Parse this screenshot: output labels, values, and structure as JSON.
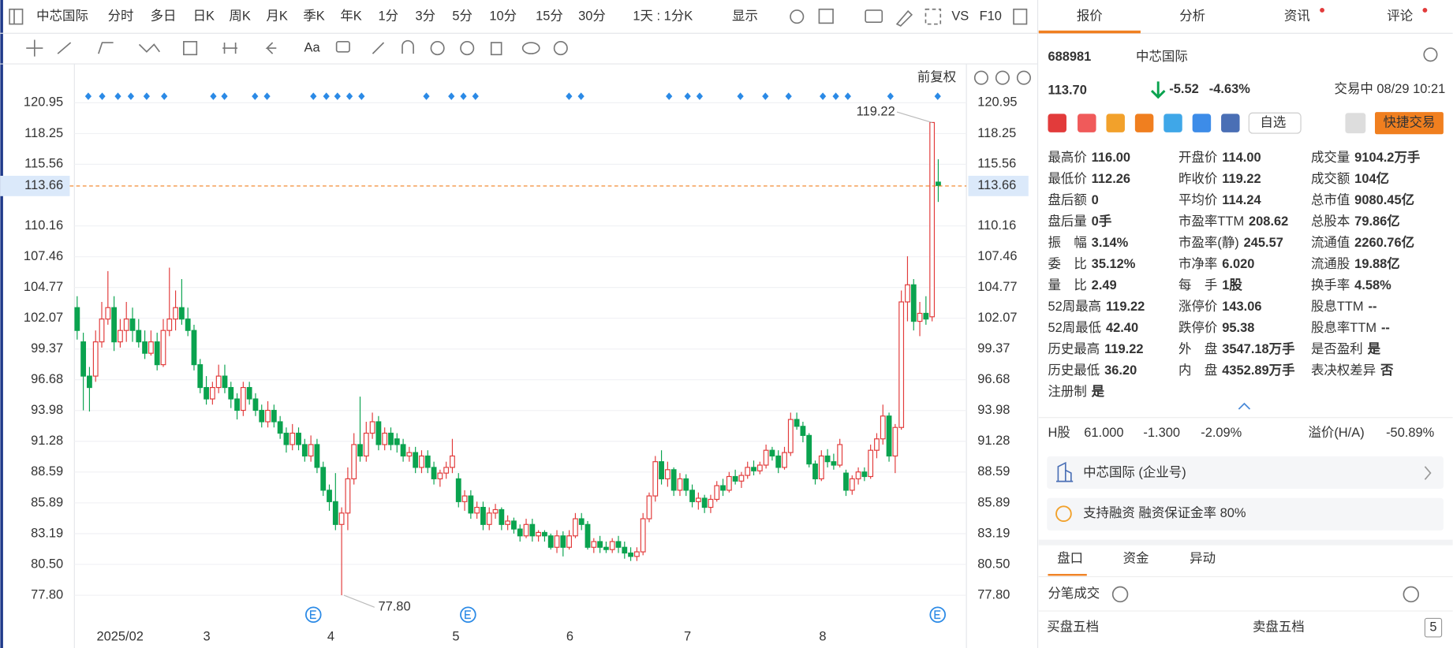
{
  "toolbar": {
    "stock": "中芯国际",
    "periods": [
      "分时",
      "多日",
      "日K",
      "周K",
      "月K",
      "季K",
      "年K",
      "1分",
      "3分",
      "5分",
      "10分",
      "15分",
      "30分",
      "1天 : 1分K",
      "显示"
    ],
    "extras": [
      "VS",
      "F10"
    ],
    "font_tool": "Aa"
  },
  "chart_data": {
    "type": "candlestick",
    "adjust_label": "前复权",
    "up_color": "#e23b3b",
    "down_color": "#0aa34f",
    "ylim": [
      76.42,
      122.33
    ],
    "yticks": [
      120.95,
      118.25,
      115.56,
      110.16,
      107.46,
      104.77,
      102.07,
      99.37,
      96.68,
      93.98,
      91.28,
      88.59,
      85.89,
      83.19,
      {
        "value": 80.5,
        "label": "80.50"
      },
      {
        "value": 77.8,
        "label": "77.80"
      }
    ],
    "grid": true,
    "crosshair": 113.66,
    "high_mark": 119.22,
    "low_mark": {
      "value": 77.8,
      "label": "77.80"
    },
    "months": [
      "2025/02",
      "3",
      "4",
      "5",
      "6",
      "7",
      "8"
    ],
    "candles": [
      [
        103,
        104,
        100.2,
        101
      ],
      [
        100,
        100.8,
        94,
        97
      ],
      [
        97,
        97.8,
        93.9,
        96
      ],
      [
        97,
        101,
        96.5,
        100
      ],
      [
        100,
        103.5,
        99.5,
        102
      ],
      [
        102,
        106.2,
        101.5,
        103
      ],
      [
        103,
        104,
        99.2,
        100
      ],
      [
        100,
        102,
        99.5,
        101
      ],
      [
        101,
        103.5,
        100,
        102
      ],
      [
        102,
        103,
        100,
        101
      ],
      [
        101,
        102,
        99.5,
        100
      ],
      [
        100,
        101,
        98.5,
        99
      ],
      [
        99,
        101,
        98.8,
        100
      ],
      [
        100,
        100.8,
        97.5,
        98
      ],
      [
        98,
        102,
        97.8,
        101
      ],
      [
        101,
        106.5,
        100.5,
        102
      ],
      [
        102,
        104.5,
        101,
        103
      ],
      [
        103,
        105.5,
        101.5,
        102
      ],
      [
        102,
        103,
        100.5,
        101
      ],
      [
        101,
        101.5,
        97.5,
        98
      ],
      [
        98,
        98.5,
        95.5,
        96
      ],
      [
        96,
        97,
        94.5,
        95
      ],
      [
        95,
        96.5,
        94.5,
        96
      ],
      [
        96,
        98,
        95.5,
        97
      ],
      [
        97,
        98,
        95.5,
        96
      ],
      [
        96,
        96.5,
        94.2,
        95
      ],
      [
        95,
        95.5,
        93.2,
        94
      ],
      [
        94,
        96.5,
        93.5,
        96
      ],
      [
        96,
        96.5,
        94.5,
        95
      ],
      [
        95,
        95.5,
        93.5,
        94
      ],
      [
        94,
        94.5,
        92.5,
        93
      ],
      [
        93,
        94.8,
        92.5,
        94
      ],
      [
        94,
        94.5,
        92.5,
        93
      ],
      [
        93,
        93.5,
        91.5,
        92
      ],
      [
        92,
        92.5,
        90.3,
        91
      ],
      [
        91,
        92.8,
        90.5,
        92
      ],
      [
        92,
        92.5,
        90.5,
        91
      ],
      [
        91,
        91.5,
        89.5,
        90
      ],
      [
        90,
        91.8,
        89.5,
        91
      ],
      [
        91,
        91.5,
        88.5,
        89
      ],
      [
        89,
        89.5,
        86.5,
        87
      ],
      [
        87,
        87.5,
        85.2,
        86
      ],
      [
        86,
        88.5,
        83.5,
        84
      ],
      [
        84,
        85.5,
        77.8,
        85
      ],
      [
        85,
        89,
        83.5,
        88
      ],
      [
        88,
        92,
        87.5,
        91
      ],
      [
        91,
        95.2,
        89.5,
        90
      ],
      [
        90,
        93,
        89.5,
        92
      ],
      [
        92,
        93.8,
        91.5,
        93
      ],
      [
        93,
        93.5,
        90.5,
        91
      ],
      [
        91,
        92.5,
        90.5,
        92
      ],
      [
        92,
        92.5,
        90.5,
        91
      ],
      [
        91.5,
        92,
        90.3,
        91
      ],
      [
        91,
        91.5,
        89.5,
        90
      ],
      [
        90,
        90.8,
        89.5,
        90.3
      ],
      [
        90.3,
        90.8,
        88.5,
        89
      ],
      [
        89,
        90.5,
        88.5,
        90
      ],
      [
        90,
        90.5,
        88.5,
        89
      ],
      [
        89,
        89.5,
        87.5,
        88
      ],
      [
        88,
        88.8,
        87.3,
        88.5
      ],
      [
        88.5,
        89.5,
        88,
        89
      ],
      [
        89,
        91.5,
        88.5,
        90
      ],
      [
        88,
        88.5,
        85.5,
        86
      ],
      [
        86,
        87,
        85.2,
        86.5
      ],
      [
        86.5,
        87,
        84.5,
        85
      ],
      [
        85,
        86,
        84.5,
        85.5
      ],
      [
        85.5,
        86,
        83.5,
        84
      ],
      [
        84,
        85.5,
        83.5,
        85
      ],
      [
        85,
        85.8,
        84.5,
        85.3
      ],
      [
        85.3,
        85.5,
        83.5,
        84
      ],
      [
        84,
        84.8,
        83.5,
        84.3
      ],
      [
        84.3,
        84.6,
        83.2,
        83.6
      ],
      [
        83.6,
        84,
        82.5,
        83
      ],
      [
        83,
        84.5,
        82.8,
        84
      ],
      [
        84,
        84.5,
        82.5,
        83
      ],
      [
        83,
        83.5,
        82.5,
        83.3
      ],
      [
        83.3,
        83.5,
        82.5,
        83
      ],
      [
        83,
        83.2,
        81.8,
        82
      ],
      [
        82,
        83.5,
        81.5,
        83
      ],
      [
        83,
        83.4,
        81.2,
        82
      ],
      [
        82,
        83.5,
        81.8,
        83
      ],
      [
        83,
        85,
        82.8,
        84.5
      ],
      [
        84.5,
        85,
        83.5,
        84
      ],
      [
        84,
        84.3,
        81.8,
        82
      ],
      [
        82,
        82.8,
        81.5,
        82.5
      ],
      [
        82.5,
        83,
        81.5,
        82
      ],
      [
        82,
        82.5,
        81.5,
        81.8
      ],
      [
        81.8,
        82.8,
        81.5,
        82.5
      ],
      [
        82.5,
        83,
        81.5,
        82
      ],
      [
        82,
        82.5,
        81,
        81.5
      ],
      [
        81.5,
        82,
        80.8,
        81.2
      ],
      [
        81.2,
        82,
        80.8,
        81.6
      ],
      [
        81.6,
        85,
        81.3,
        84.5
      ],
      [
        84.5,
        86.8,
        84.2,
        86.5
      ],
      [
        86.5,
        90,
        86,
        89.5
      ],
      [
        89.5,
        90.5,
        87.5,
        88
      ],
      [
        88,
        89.5,
        87.3,
        88.8
      ],
      [
        88.8,
        89,
        86.5,
        87
      ],
      [
        87,
        88.5,
        86.5,
        88
      ],
      [
        88,
        88.4,
        86.5,
        87
      ],
      [
        87,
        87.5,
        85.5,
        86
      ],
      [
        86,
        86.8,
        85.3,
        86.3
      ],
      [
        86.3,
        86.6,
        85,
        85.5
      ],
      [
        85.5,
        86.6,
        85,
        86.2
      ],
      [
        86.2,
        87.8,
        86,
        87.4
      ],
      [
        87.4,
        88,
        86.5,
        87
      ],
      [
        87,
        88.6,
        86.8,
        88.2
      ],
      [
        88.2,
        88.8,
        87.5,
        87.8
      ],
      [
        87.8,
        88.6,
        87.2,
        88.3
      ],
      [
        88.3,
        89.5,
        88,
        89
      ],
      [
        89,
        89.6,
        88.3,
        88.7
      ],
      [
        88.7,
        89.5,
        88.4,
        89.2
      ],
      [
        89.2,
        91,
        88.9,
        90.5
      ],
      [
        90.5,
        90.8,
        89.6,
        90
      ],
      [
        90,
        90.5,
        88.5,
        89
      ],
      [
        89,
        90.8,
        88.8,
        90.3
      ],
      [
        90.3,
        93.8,
        90,
        93.2
      ],
      [
        93.2,
        93.8,
        92.3,
        92.6
      ],
      [
        92.6,
        93,
        91.2,
        91.8
      ],
      [
        91.8,
        92,
        89,
        89.3
      ],
      [
        89.3,
        89.6,
        87.5,
        88
      ],
      [
        88,
        90.5,
        87.8,
        90
      ],
      [
        90,
        90.6,
        89,
        89.5
      ],
      [
        89.5,
        90.2,
        88.8,
        89.2
      ],
      [
        89.2,
        91.5,
        89,
        91
      ],
      [
        88.5,
        88.8,
        86.5,
        87
      ],
      [
        87,
        88.3,
        86.6,
        88
      ],
      [
        88,
        89,
        87.5,
        88.6
      ],
      [
        88.6,
        89,
        87.8,
        88.2
      ],
      [
        88.2,
        91,
        88,
        90.5
      ],
      [
        90.5,
        92,
        89.8,
        91.5
      ],
      [
        91.5,
        94.5,
        91,
        93.5
      ],
      [
        93.5,
        93.8,
        89.5,
        90
      ],
      [
        90,
        92.8,
        88.5,
        92.5
      ],
      [
        92.5,
        104.5,
        92.3,
        103.5
      ],
      [
        103.5,
        107.5,
        101.8,
        105
      ],
      [
        105,
        105.5,
        101,
        101.8
      ],
      [
        101.8,
        103.5,
        100.5,
        102.5
      ],
      [
        102.5,
        104,
        101.5,
        102
      ],
      [
        102.2,
        119.22,
        101.8,
        119.22
      ],
      [
        114,
        116,
        112.26,
        113.7
      ]
    ]
  },
  "panel": {
    "tabs": [
      "报价",
      "分析",
      "资讯",
      "评论"
    ],
    "code": "688981",
    "name": "中芯国际",
    "price": "113.70",
    "change": "-5.52",
    "change_pct": "-4.63%",
    "status": "交易中 08/29 10:21",
    "watch": "自选",
    "quick_trade": "快捷交易",
    "stats": [
      [
        {
          "label": "最高价",
          "value": "116.00",
          "color": "#0aa34f"
        },
        {
          "label": "最低价",
          "value": "112.26",
          "color": "#0aa34f"
        },
        {
          "label": "盘后额",
          "value": "0",
          "color": "#222"
        },
        {
          "label": "盘后量",
          "value": "0手",
          "color": "#222"
        },
        {
          "label": "振　幅",
          "value": "3.14%",
          "color": "#222"
        },
        {
          "label": "委　比",
          "value": "35.12%",
          "color": "#222"
        },
        {
          "label": "量　比",
          "value": "2.49",
          "color": "#222"
        },
        {
          "label": "52周最高",
          "value": "119.22",
          "color": "#444"
        },
        {
          "label": "52周最低",
          "value": "42.40",
          "color": "#0aa34f"
        },
        {
          "label": "历史最高",
          "value": "119.22",
          "color": "#444"
        },
        {
          "label": "历史最低",
          "value": "36.20",
          "color": "#0aa34f"
        },
        {
          "label": "注册制",
          "value": "是",
          "color": "#222"
        }
      ],
      [
        {
          "label": "开盘价",
          "value": "114.00",
          "color": "#0aa34f"
        },
        {
          "label": "昨收价",
          "value": "119.22",
          "color": "#444"
        },
        {
          "label": "平均价",
          "value": "114.24",
          "color": "#0aa34f"
        },
        {
          "label": "市盈率TTM",
          "value": "208.62",
          "color": "#222"
        },
        {
          "label": "市盈率(静)",
          "value": "245.57",
          "color": "#222"
        },
        {
          "label": "市净率",
          "value": "6.020",
          "color": "#222"
        },
        {
          "label": "每　手",
          "value": "1股",
          "color": "#222"
        },
        {
          "label": "涨停价",
          "value": "143.06",
          "color": "#e23b3b"
        },
        {
          "label": "跌停价",
          "value": "95.38",
          "color": "#0aa34f"
        },
        {
          "label": "外　盘",
          "value": "3547.18万手",
          "color": "#e23b3b"
        },
        {
          "label": "内　盘",
          "value": "4352.89万手",
          "color": "#0aa34f"
        }
      ],
      [
        {
          "label": "成交量",
          "value": "9104.2万手",
          "color": "#222"
        },
        {
          "label": "成交额",
          "value": "104亿",
          "color": "#222"
        },
        {
          "label": "总市值",
          "value": "9080.45亿",
          "color": "#222"
        },
        {
          "label": "总股本",
          "value": "79.86亿",
          "color": "#222"
        },
        {
          "label": "流通值",
          "value": "2260.76亿",
          "color": "#222"
        },
        {
          "label": "流通股",
          "value": "19.88亿",
          "color": "#222"
        },
        {
          "label": "换手率",
          "value": "4.58%",
          "color": "#222"
        },
        {
          "label": "股息TTM",
          "value": "--",
          "color": "#222"
        },
        {
          "label": "股息率TTM",
          "value": "--",
          "color": "#222"
        },
        {
          "label": "是否盈利",
          "value": "是",
          "color": "#222"
        },
        {
          "label": "表决权差异",
          "value": "否",
          "color": "#222"
        }
      ]
    ],
    "hshare": {
      "label": "H股",
      "price": "61.000",
      "change": "-1.300",
      "pct": "-2.09%",
      "premium_label": "溢价(H/A)",
      "premium": "-50.89%"
    },
    "links": [
      "中芯国际 (企业号)",
      "支持融资 融资保证金率 80%"
    ],
    "sub_tabs": [
      "盘口",
      "资金",
      "异动"
    ],
    "ticks_title": "分笔成交",
    "bid": "买盘五档",
    "ask": "卖盘五档",
    "depth": "5"
  }
}
